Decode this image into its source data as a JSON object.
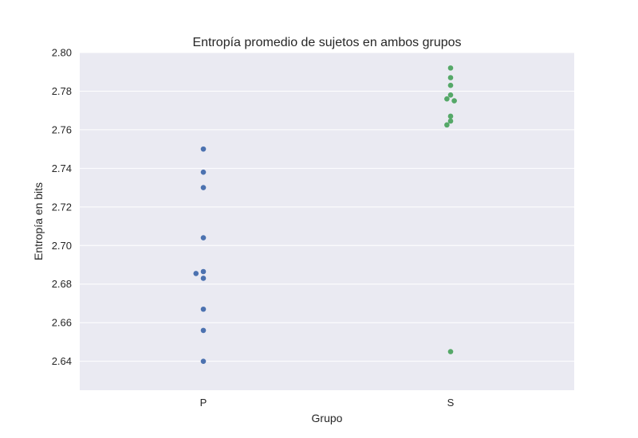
{
  "chart_data": {
    "type": "scatter",
    "title": "Entropía promedio de sujetos en ambos grupos",
    "xlabel": "Grupo",
    "ylabel": "Entropía en bits",
    "categories": [
      "P",
      "S"
    ],
    "ylim": [
      2.625,
      2.8
    ],
    "yticks": [
      "2.64",
      "2.66",
      "2.68",
      "2.70",
      "2.72",
      "2.74",
      "2.76",
      "2.78",
      "2.80"
    ],
    "grid": true,
    "series": [
      {
        "category": "P",
        "color": "#4c72b0",
        "values": [
          2.75,
          2.738,
          2.73,
          2.704,
          2.6865,
          2.6855,
          2.683,
          2.667,
          2.656,
          2.64
        ]
      },
      {
        "category": "S",
        "color": "#55a868",
        "values": [
          2.792,
          2.787,
          2.783,
          2.778,
          2.776,
          2.775,
          2.767,
          2.7645,
          2.7625,
          2.645
        ]
      }
    ],
    "background_color": "#eaeaf2",
    "grid_color": "#ffffff"
  }
}
